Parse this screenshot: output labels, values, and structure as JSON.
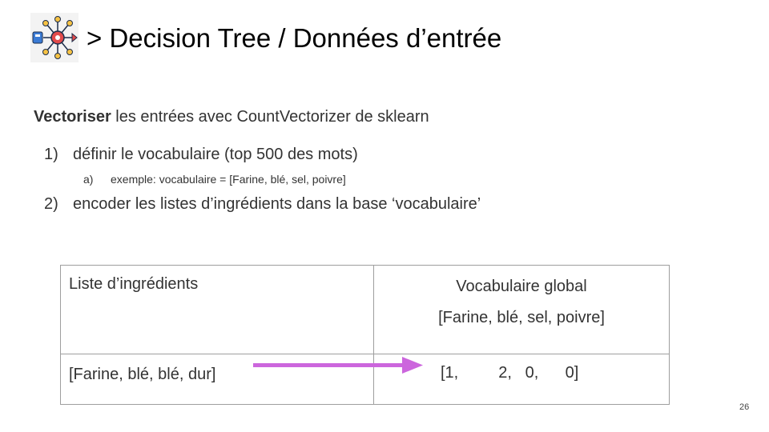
{
  "title": "> Decision Tree / Données d’entrée",
  "intro": {
    "bold": "Vectoriser",
    "rest": " les entrées avec CountVectorizer de sklearn"
  },
  "steps": [
    {
      "number": "1)",
      "text": "définir le vocabulaire (top 500 des mots)",
      "sub": {
        "number": "a)",
        "text": "exemple: vocabulaire = [Farine, blé, sel, poivre]"
      }
    },
    {
      "number": "2)",
      "text": "encoder les listes d’ingrédients dans la base ‘vocabulaire’"
    }
  ],
  "table": {
    "header_left": "Liste d’ingrédients",
    "header_right_title": "Vocabulaire global",
    "header_right_list": "[Farine, blé, sel, poivre]",
    "row_left": "[Farine, blé, blé, dur]",
    "row_right": "[1,         2,   0,      0]"
  },
  "arrow_color": "#cc66dd",
  "page_number": "26"
}
